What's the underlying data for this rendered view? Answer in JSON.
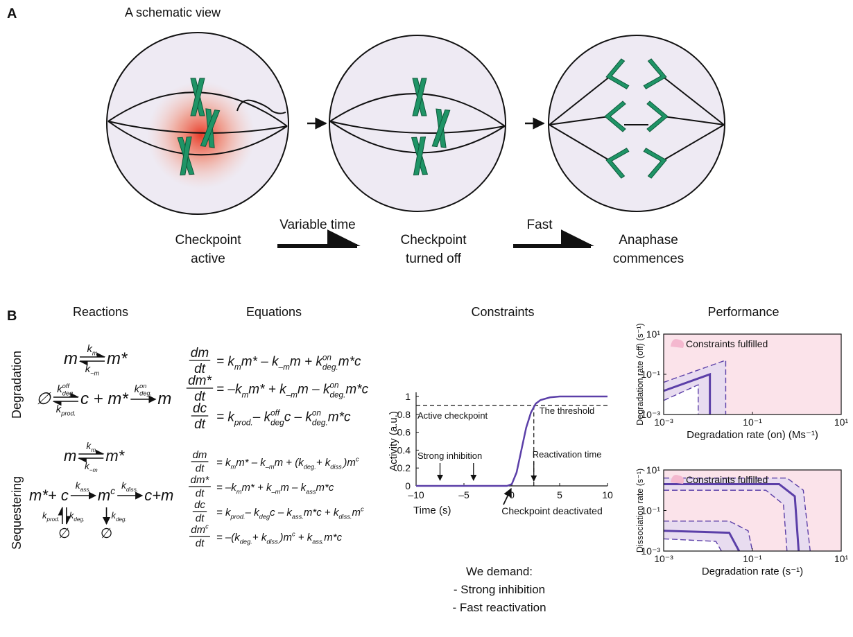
{
  "panel_a": {
    "label": "A",
    "title": "A schematic view",
    "states": [
      [
        "Checkpoint",
        "active"
      ],
      [
        "Checkpoint",
        "turned off"
      ],
      [
        "Anaphase",
        "commences"
      ]
    ],
    "transitions": [
      "Variable time",
      "Fast"
    ]
  },
  "panel_b": {
    "label": "B",
    "columns": [
      "Reactions",
      "Equations",
      "Constraints",
      "Performance"
    ],
    "rows": [
      "Degradation",
      "Sequestering"
    ],
    "reactions": [
      [
        {
          "parts": [
            {
              "species": [
                "m"
              ]
            },
            {
              "arrow": {
                "above": [
                  {
                    "base": "k",
                    "sub": "m"
                  }
                ],
                "below": [
                  {
                    "base": "k",
                    "sub": "−m"
                  }
                ],
                "reversible": true
              }
            },
            {
              "species": [
                "m*"
              ]
            }
          ]
        },
        {
          "parts": [
            {
              "species": [
                "∅"
              ]
            },
            {
              "arrow": {
                "above": [
                  {
                    "base": "k",
                    "sub": "deg.",
                    "sup": "off"
                  }
                ],
                "below": [
                  {
                    "base": "k",
                    "sub": "prod."
                  }
                ],
                "reversible": true
              }
            },
            {
              "species": [
                "c + m*"
              ]
            },
            {
              "arrow": {
                "above": [
                  {
                    "base": "k",
                    "sub": "deg.",
                    "sup": "on"
                  }
                ],
                "reversible": false
              }
            },
            {
              "species": [
                "m"
              ]
            }
          ]
        }
      ],
      [
        {
          "parts": [
            {
              "species": [
                "m"
              ]
            },
            {
              "arrow": {
                "above": [
                  {
                    "base": "k",
                    "sub": "m"
                  }
                ],
                "below": [
                  {
                    "base": "k",
                    "sub": "−m"
                  }
                ],
                "reversible": true
              }
            },
            {
              "species": [
                "m*"
              ]
            }
          ]
        },
        {
          "parts": [
            {
              "species": [
                "m*+ c"
              ]
            },
            {
              "arrow": {
                "above": [
                  {
                    "base": "k",
                    "sub": "ass."
                  }
                ],
                "reversible": false
              }
            },
            {
              "species": [
                {
                  "base": "m",
                  "sup": "c"
                }
              ]
            },
            {
              "arrow": {
                "above": [
                  {
                    "base": "k",
                    "sub": "diss."
                  }
                ],
                "reversible": false
              }
            },
            {
              "species": [
                "c+m"
              ]
            }
          ],
          "vertical": [
            {
              "left": [
                {
                  "base": "k",
                  "sub": "prod."
                }
              ],
              "right": [
                {
                  "base": "k",
                  "sub": "deg."
                }
              ],
              "reversible": true,
              "product": "∅"
            },
            {
              "right": [
                {
                  "base": "k",
                  "sub": "deg."
                }
              ],
              "reversible": false,
              "product": "∅"
            }
          ]
        }
      ]
    ],
    "equations": [
      [
        {
          "num": [
            "dm"
          ],
          "den": [
            "dt"
          ],
          "rhs": [
            "= ",
            {
              "base": "k",
              "sub": "m"
            },
            "m* – ",
            {
              "base": "k",
              "sub": "–m"
            },
            "m + ",
            {
              "base": "k",
              "sub": "deg.",
              "sup": "on"
            },
            "m*c"
          ]
        },
        {
          "num": [
            "dm*"
          ],
          "den": [
            "dt"
          ],
          "rhs": [
            "= –",
            {
              "base": "k",
              "sub": "m"
            },
            "m* + ",
            {
              "base": "k",
              "sub": "–m"
            },
            "m – ",
            {
              "base": "k",
              "sub": "deg.",
              "sup": "on"
            },
            "m*c"
          ]
        },
        {
          "num": [
            "dc"
          ],
          "den": [
            "dt"
          ],
          "rhs": [
            "= ",
            {
              "base": "k",
              "sub": "prod."
            },
            "– ",
            {
              "base": "k",
              "sub": "deg",
              "sup": "off"
            },
            "c – ",
            {
              "base": "k",
              "sub": "deg.",
              "sup": "on"
            },
            "m*c"
          ]
        }
      ],
      [
        {
          "num": [
            "dm"
          ],
          "den": [
            "dt"
          ],
          "rhs": [
            "= ",
            {
              "base": "k",
              "sub": "m"
            },
            "m* – ",
            {
              "base": "k",
              "sub": "–m"
            },
            "m + (",
            {
              "base": "k",
              "sub": "deg."
            },
            "+ ",
            {
              "base": "k",
              "sub": "diss."
            },
            ")",
            {
              "base": "m",
              "sup": "c"
            }
          ]
        },
        {
          "num": [
            "dm*"
          ],
          "den": [
            "dt"
          ],
          "rhs": [
            "= –",
            {
              "base": "k",
              "sub": "m"
            },
            "m* + ",
            {
              "base": "k",
              "sub": "–m"
            },
            "m – ",
            {
              "base": "k",
              "sub": "ass"
            },
            "m*c"
          ]
        },
        {
          "num": [
            "dc"
          ],
          "den": [
            "dt"
          ],
          "rhs": [
            "= ",
            {
              "base": "k",
              "sub": "prod."
            },
            "– ",
            {
              "base": "k",
              "sub": "deg"
            },
            "c – ",
            {
              "base": "k",
              "sub": "ass."
            },
            "m*c + ",
            {
              "base": "k",
              "sub": "diss."
            },
            {
              "base": "m",
              "sup": "c"
            }
          ]
        },
        {
          "num": [
            {
              "base": "dm",
              "sup": "c"
            }
          ],
          "den": [
            "dt"
          ],
          "rhs": [
            "= –(",
            {
              "base": "k",
              "sub": "deg."
            },
            "+ ",
            {
              "base": "k",
              "sub": "diss."
            },
            ")",
            {
              "base": "m",
              "sup": "c"
            },
            " + ",
            {
              "base": "k",
              "sub": "ass."
            },
            "m*c"
          ]
        }
      ]
    ],
    "demand": [
      "We demand:",
      "- Strong inhibition",
      "- Fast reactivation"
    ]
  },
  "chart_data": [
    {
      "type": "line",
      "x": [
        -10,
        -5,
        -1,
        -0.5,
        0,
        0.5,
        1,
        1.5,
        2,
        2.5,
        3,
        4,
        5,
        10
      ],
      "y": [
        0,
        0,
        0,
        0,
        0.02,
        0.15,
        0.4,
        0.65,
        0.82,
        0.92,
        0.96,
        0.99,
        1,
        1
      ],
      "color": "#5b3fa8",
      "xlim": [
        -10,
        10
      ],
      "ylim": [
        0,
        1
      ],
      "xticks": [
        {
          "value": -10,
          "label": "–10"
        },
        {
          "value": -5,
          "label": "–5"
        },
        0,
        5,
        10
      ],
      "yticks": [
        0,
        0.2,
        0.4,
        0.6,
        0.8,
        1
      ],
      "xlabel": "Time (s)",
      "ylabel": "Activity (a.u.)",
      "threshold": 0.9,
      "reactivation_time": 2.3,
      "inhibition_arrows": [
        -7.5,
        -4
      ],
      "annotations": {
        "active": "Active checkpoint",
        "threshold": "The threshold",
        "inhibition": "Strong inhibition",
        "reactivation": "Reactivation time",
        "deactivated": "Checkpoint deactivated"
      }
    },
    {
      "type": "region",
      "log": true,
      "xlim": [
        0.001,
        10
      ],
      "ylim": [
        0.001,
        10
      ],
      "xticks": [
        {
          "value": 0.001,
          "label": "10⁻³"
        },
        {
          "value": 0.1,
          "label": "10⁻¹"
        },
        {
          "value": 10,
          "label": "10¹"
        }
      ],
      "yticks": [
        {
          "value": 0.001,
          "label": "10⁻³"
        },
        {
          "value": 0.1,
          "label": "10⁻¹"
        },
        {
          "value": 10,
          "label": "10¹"
        }
      ],
      "xlabel": "Degradation rate (on) (Ms⁻¹)",
      "ylabel": "Degradation rate (off) (s⁻¹)",
      "legend": "Constraints fulfilled",
      "background": "#fbe3ea",
      "color": "#5b3fa8",
      "lines": [
        {
          "style": "dashed",
          "fill": "#e8dcf0",
          "x": [
            0.001,
            0.025,
            0.025
          ],
          "y": [
            0.04,
            0.5,
            0.001
          ]
        },
        {
          "style": "solid",
          "x": [
            0.001,
            0.011,
            0.011
          ],
          "y": [
            0.015,
            0.1,
            0.001
          ]
        },
        {
          "style": "dashed",
          "fill": "#ffffff",
          "x": [
            0.001,
            0.006,
            0.006
          ],
          "y": [
            0.005,
            0.03,
            0.001
          ]
        }
      ]
    },
    {
      "type": "region",
      "log": true,
      "xlim": [
        0.001,
        10
      ],
      "ylim": [
        0.001,
        10
      ],
      "xticks": [
        {
          "value": 0.001,
          "label": "10⁻³"
        },
        {
          "value": 0.1,
          "label": "10⁻¹"
        },
        {
          "value": 10,
          "label": "10¹"
        }
      ],
      "yticks": [
        {
          "value": 0.001,
          "label": "10⁻³"
        },
        {
          "value": 0.1,
          "label": "10⁻¹"
        },
        {
          "value": 10,
          "label": "10¹"
        }
      ],
      "xlabel": "Degradation rate (s⁻¹)",
      "ylabel": "Dissociation rate (s⁻¹)",
      "legend": "Constraints fulfilled",
      "background": "#fbe3ea",
      "color": "#5b3fa8",
      "lines": [
        {
          "style": "dashed",
          "fill": "#e8dcf0",
          "x": [
            0.001,
            0.6,
            1.4,
            2
          ],
          "y": [
            4,
            4,
            1,
            0.001
          ]
        },
        {
          "style": "solid",
          "x": [
            0.001,
            0.4,
            0.9,
            1.1
          ],
          "y": [
            2,
            2,
            0.5,
            0.001
          ]
        },
        {
          "style": "dashed",
          "fill": "#fbe3ea",
          "x": [
            0.001,
            0.2,
            0.5,
            0.6
          ],
          "y": [
            1,
            1,
            0.2,
            0.001
          ]
        },
        {
          "style": "dashed",
          "fill": "#e8dcf0",
          "x": [
            0.001,
            0.03,
            0.08,
            0.1
          ],
          "y": [
            0.03,
            0.03,
            0.01,
            0.001
          ]
        },
        {
          "style": "solid",
          "x": [
            0.001,
            0.03,
            0.05
          ],
          "y": [
            0.01,
            0.008,
            0.001
          ]
        },
        {
          "style": "dashed",
          "fill": "#ffffff",
          "x": [
            0.001,
            0.015,
            0.02
          ],
          "y": [
            0.004,
            0.003,
            0.001
          ]
        }
      ]
    }
  ]
}
